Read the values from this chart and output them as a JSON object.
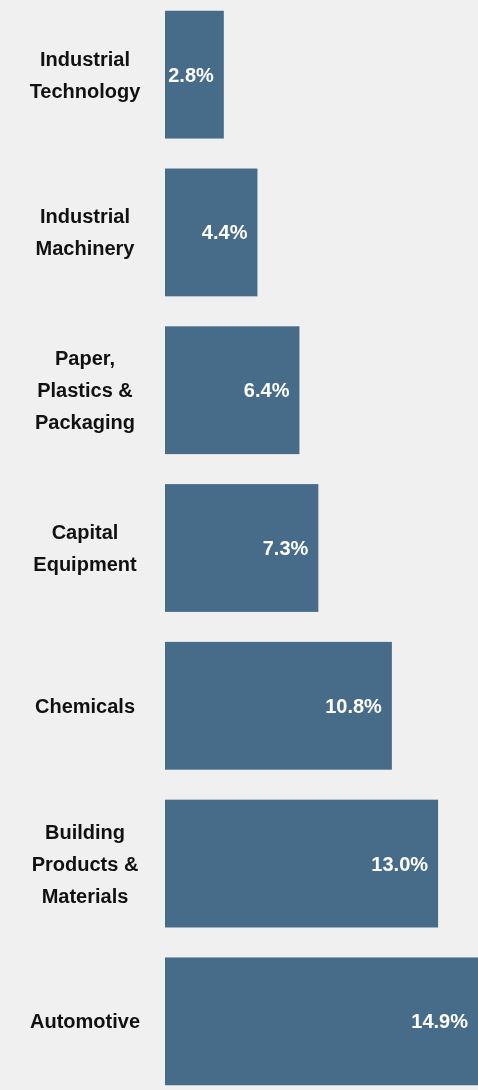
{
  "chart_data": {
    "type": "bar",
    "orientation": "horizontal",
    "categories": [
      "Industrial Technology",
      "Industrial Machinery",
      "Paper, Plastics & Packaging",
      "Capital Equipment",
      "Chemicals",
      "Building Products & Materials",
      "Automotive"
    ],
    "values": [
      2.8,
      4.4,
      6.4,
      7.3,
      10.8,
      13.0,
      14.9
    ],
    "value_labels": [
      "2.8%",
      "4.4%",
      "6.4%",
      "7.3%",
      "10.8%",
      "13.0%",
      "14.9%"
    ],
    "color": "#476c8a"
  }
}
